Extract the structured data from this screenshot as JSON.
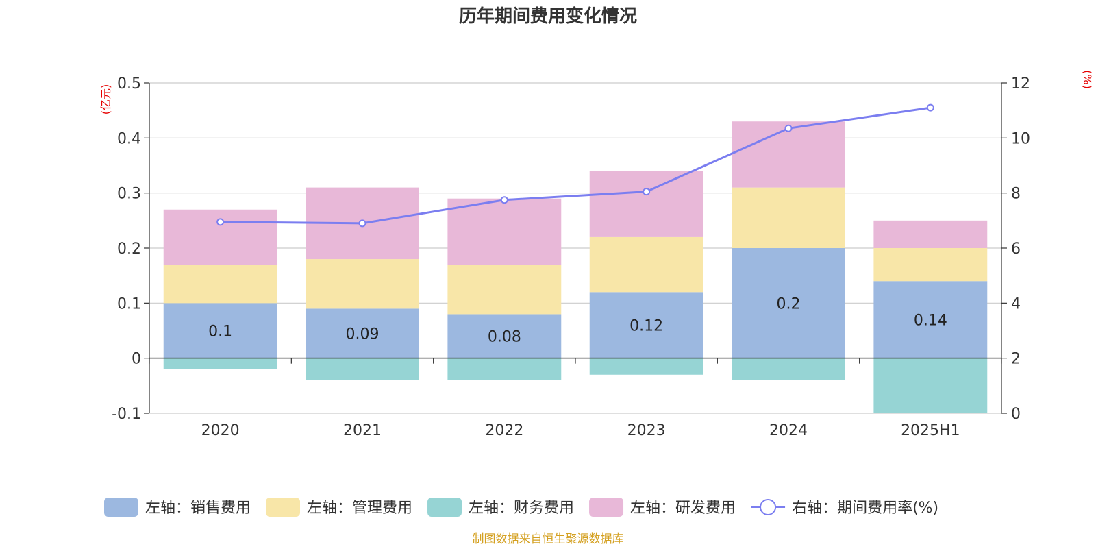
{
  "chart_data": {
    "type": "bar",
    "title": "历年期间费用变化情况",
    "source": "制图数据来自恒生聚源数据库",
    "left_axis_unit": "(亿元)",
    "right_axis_unit": "(%)",
    "categories": [
      "2020",
      "2021",
      "2022",
      "2023",
      "2024",
      "2025H1"
    ],
    "ylim_left": [
      -0.1,
      0.5
    ],
    "yticks_left": [
      "-0.1",
      "0",
      "0.1",
      "0.2",
      "0.3",
      "0.4",
      "0.5"
    ],
    "ylim_right": [
      0,
      12
    ],
    "yticks_right": [
      "0",
      "2",
      "4",
      "6",
      "8",
      "10",
      "12"
    ],
    "grid": true,
    "legend_position": "bottom",
    "series": [
      {
        "name": "左轴：销售费用",
        "type": "bar",
        "axis": "left",
        "color": "#9cb8e0",
        "values": [
          0.1,
          0.09,
          0.08,
          0.12,
          0.2,
          0.14
        ],
        "labels": [
          "0.1",
          "0.09",
          "0.08",
          "0.12",
          "0.2",
          "0.14"
        ]
      },
      {
        "name": "左轴：管理费用",
        "type": "bar",
        "axis": "left",
        "color": "#f8e6a8",
        "values": [
          0.07,
          0.09,
          0.09,
          0.1,
          0.11,
          0.06
        ]
      },
      {
        "name": "左轴：财务费用",
        "type": "bar",
        "axis": "left",
        "color": "#96d4d4",
        "values": [
          -0.02,
          -0.04,
          -0.04,
          -0.03,
          -0.04,
          -0.1
        ]
      },
      {
        "name": "左轴：研发费用",
        "type": "bar",
        "axis": "left",
        "color": "#e8b8d8",
        "values": [
          0.1,
          0.13,
          0.12,
          0.12,
          0.12,
          0.05
        ]
      },
      {
        "name": "右轴：期间费用率(%)",
        "type": "line",
        "axis": "right",
        "color": "#7b7ef0",
        "values": [
          6.95,
          6.9,
          7.75,
          8.05,
          10.35,
          11.1
        ]
      }
    ]
  }
}
